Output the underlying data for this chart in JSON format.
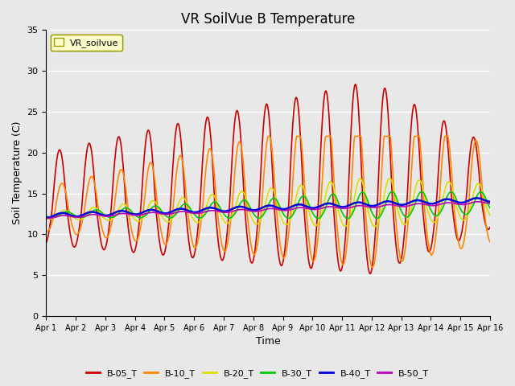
{
  "title": "VR SoilVue B Temperature",
  "xlabel": "Time",
  "ylabel": "Soil Temperature (C)",
  "ylim": [
    0,
    35
  ],
  "yticks": [
    0,
    5,
    10,
    15,
    20,
    25,
    30,
    35
  ],
  "x_tick_labels": [
    "Apr 1",
    "Apr 2",
    "Apr 3",
    "Apr 4",
    "Apr 5",
    "Apr 6",
    "Apr 7",
    "Apr 8",
    "Apr 9",
    "Apr 10",
    "Apr 11",
    "Apr 12",
    "Apr 13",
    "Apr 14",
    "Apr 15",
    "Apr 16"
  ],
  "series_colors": {
    "B-05_T": "#cc0000",
    "B-10_T": "#ff8800",
    "B-20_T": "#dddd00",
    "B-30_T": "#00cc00",
    "B-40_T": "#0000dd",
    "B-50_T": "#bb00bb"
  },
  "series_linewidths": {
    "B-05_T": 1.2,
    "B-10_T": 1.2,
    "B-20_T": 1.2,
    "B-30_T": 1.2,
    "B-40_T": 1.8,
    "B-50_T": 1.2
  },
  "legend_label": "VR_soilvue",
  "legend_box_color": "#ffffcc",
  "legend_box_edge": "#999900",
  "background_color": "#e8e8e8",
  "plot_bg_color": "#e8e8e8",
  "title_fontsize": 12,
  "axis_fontsize": 9,
  "tick_fontsize": 8
}
